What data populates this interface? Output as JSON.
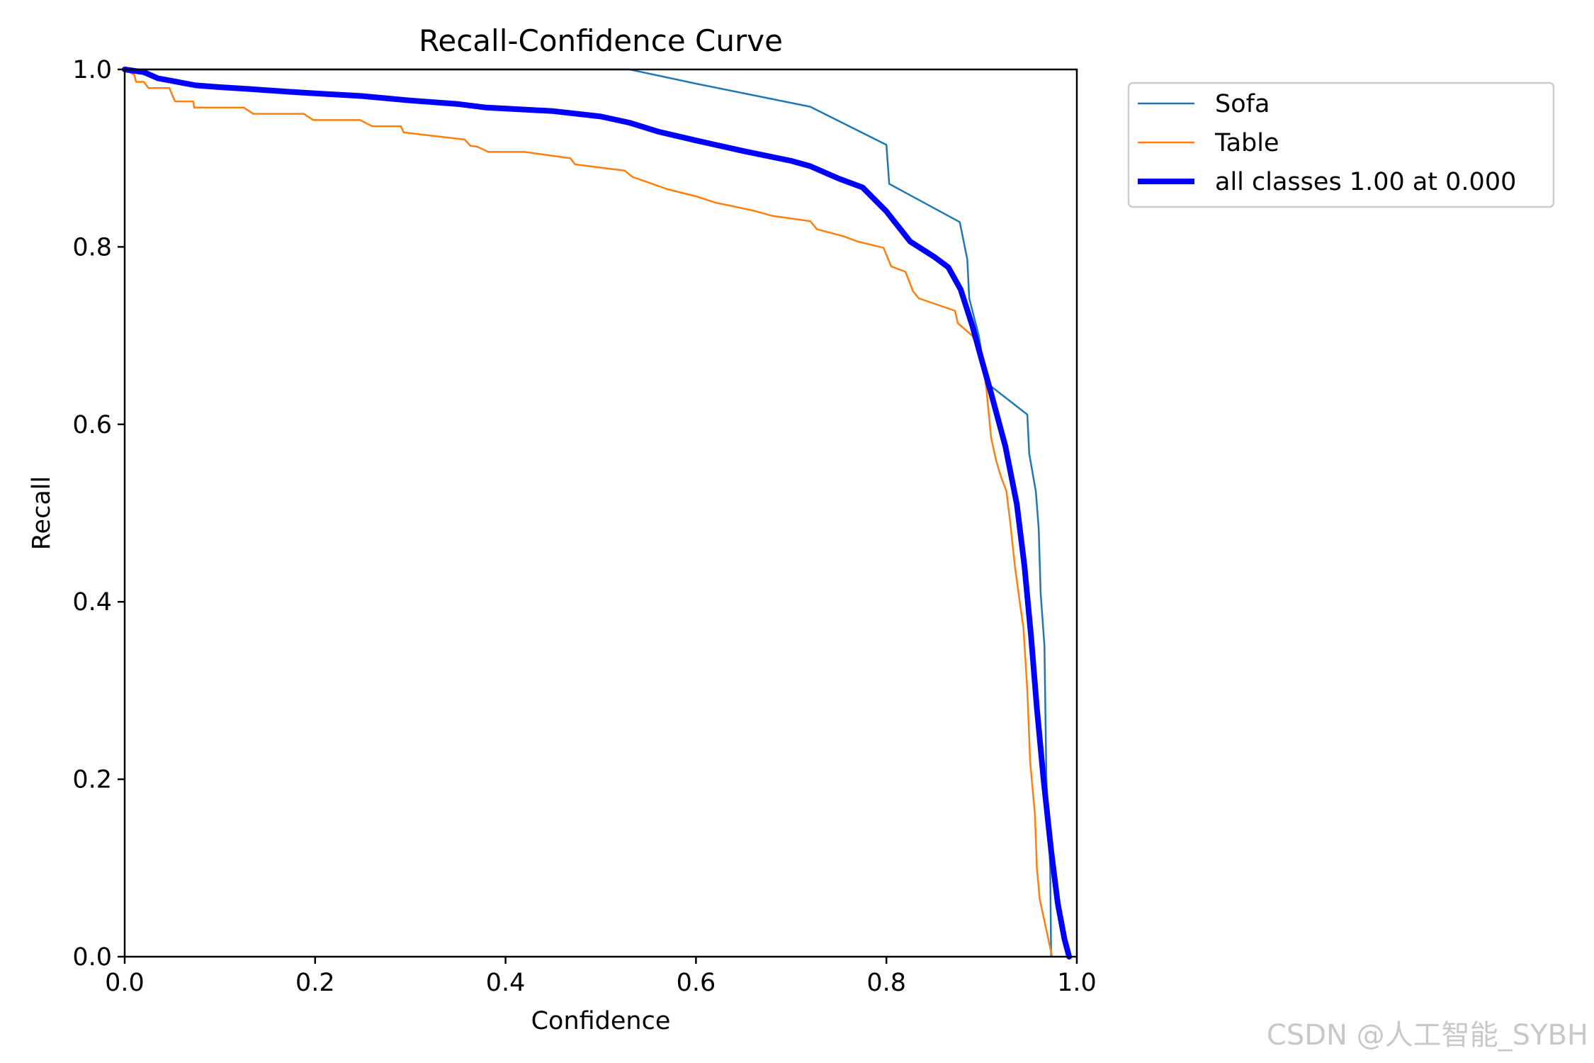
{
  "chart_data": {
    "type": "line",
    "title": "Recall-Confidence Curve",
    "xlabel": "Confidence",
    "ylabel": "Recall",
    "xlim": [
      0.0,
      1.0
    ],
    "ylim": [
      0.0,
      1.0
    ],
    "xticks": [
      "0.0",
      "0.2",
      "0.4",
      "0.6",
      "0.8",
      "1.0"
    ],
    "yticks": [
      "0.0",
      "0.2",
      "0.4",
      "0.6",
      "0.8",
      "1.0"
    ],
    "grid": false,
    "legend_position": "outside upper-right",
    "series": [
      {
        "name": "Sofa",
        "color": "#1f77b4",
        "width": "thin",
        "points": [
          [
            0,
            1.0
          ],
          [
            0.53,
            1.0
          ],
          [
            0.6,
            0.984
          ],
          [
            0.72,
            0.958
          ],
          [
            0.8,
            0.915
          ],
          [
            0.803,
            0.871
          ],
          [
            0.877,
            0.828
          ],
          [
            0.885,
            0.786
          ],
          [
            0.887,
            0.742
          ],
          [
            0.897,
            0.7
          ],
          [
            0.905,
            0.647
          ],
          [
            0.948,
            0.611
          ],
          [
            0.95,
            0.567
          ],
          [
            0.957,
            0.524
          ],
          [
            0.96,
            0.482
          ],
          [
            0.962,
            0.41
          ],
          [
            0.966,
            0.35
          ],
          [
            0.968,
            0.2
          ],
          [
            0.972,
            0.1
          ],
          [
            0.973,
            0.0
          ]
        ]
      },
      {
        "name": "Table",
        "color": "#ff7f0e",
        "width": "thin",
        "points": [
          [
            0,
            1.0
          ],
          [
            0.01,
            0.994
          ],
          [
            0.012,
            0.986
          ],
          [
            0.02,
            0.986
          ],
          [
            0.025,
            0.979
          ],
          [
            0.047,
            0.979
          ],
          [
            0.05,
            0.971
          ],
          [
            0.053,
            0.964
          ],
          [
            0.072,
            0.964
          ],
          [
            0.073,
            0.957
          ],
          [
            0.125,
            0.957
          ],
          [
            0.135,
            0.95
          ],
          [
            0.188,
            0.95
          ],
          [
            0.198,
            0.943
          ],
          [
            0.247,
            0.943
          ],
          [
            0.26,
            0.936
          ],
          [
            0.29,
            0.936
          ],
          [
            0.293,
            0.929
          ],
          [
            0.357,
            0.921
          ],
          [
            0.363,
            0.914
          ],
          [
            0.37,
            0.913
          ],
          [
            0.382,
            0.907
          ],
          [
            0.42,
            0.907
          ],
          [
            0.468,
            0.9
          ],
          [
            0.473,
            0.893
          ],
          [
            0.525,
            0.886
          ],
          [
            0.533,
            0.879
          ],
          [
            0.57,
            0.865
          ],
          [
            0.6,
            0.857
          ],
          [
            0.62,
            0.85
          ],
          [
            0.66,
            0.841
          ],
          [
            0.68,
            0.835
          ],
          [
            0.72,
            0.829
          ],
          [
            0.727,
            0.82
          ],
          [
            0.755,
            0.812
          ],
          [
            0.77,
            0.806
          ],
          [
            0.797,
            0.799
          ],
          [
            0.805,
            0.778
          ],
          [
            0.82,
            0.772
          ],
          [
            0.828,
            0.75
          ],
          [
            0.834,
            0.742
          ],
          [
            0.872,
            0.728
          ],
          [
            0.875,
            0.714
          ],
          [
            0.89,
            0.7
          ],
          [
            0.9,
            0.68
          ],
          [
            0.905,
            0.64
          ],
          [
            0.91,
            0.585
          ],
          [
            0.915,
            0.56
          ],
          [
            0.92,
            0.542
          ],
          [
            0.926,
            0.525
          ],
          [
            0.93,
            0.49
          ],
          [
            0.935,
            0.44
          ],
          [
            0.94,
            0.4
          ],
          [
            0.944,
            0.37
          ],
          [
            0.948,
            0.3
          ],
          [
            0.951,
            0.22
          ],
          [
            0.956,
            0.16
          ],
          [
            0.958,
            0.1
          ],
          [
            0.961,
            0.065
          ],
          [
            0.965,
            0.045
          ],
          [
            0.97,
            0.02
          ],
          [
            0.974,
            0.0
          ]
        ]
      },
      {
        "name": "all classes 1.00 at 0.000",
        "color": "#0000ff",
        "width": "thick",
        "points": [
          [
            0,
            1.0
          ],
          [
            0.02,
            0.997
          ],
          [
            0.035,
            0.99
          ],
          [
            0.075,
            0.982
          ],
          [
            0.1,
            0.98
          ],
          [
            0.13,
            0.978
          ],
          [
            0.17,
            0.975
          ],
          [
            0.2,
            0.973
          ],
          [
            0.25,
            0.97
          ],
          [
            0.3,
            0.965
          ],
          [
            0.35,
            0.961
          ],
          [
            0.38,
            0.957
          ],
          [
            0.45,
            0.953
          ],
          [
            0.5,
            0.947
          ],
          [
            0.53,
            0.94
          ],
          [
            0.56,
            0.93
          ],
          [
            0.6,
            0.92
          ],
          [
            0.65,
            0.908
          ],
          [
            0.7,
            0.897
          ],
          [
            0.72,
            0.891
          ],
          [
            0.75,
            0.877
          ],
          [
            0.775,
            0.867
          ],
          [
            0.8,
            0.84
          ],
          [
            0.825,
            0.806
          ],
          [
            0.85,
            0.789
          ],
          [
            0.865,
            0.777
          ],
          [
            0.878,
            0.752
          ],
          [
            0.89,
            0.712
          ],
          [
            0.9,
            0.673
          ],
          [
            0.91,
            0.635
          ],
          [
            0.925,
            0.575
          ],
          [
            0.937,
            0.51
          ],
          [
            0.945,
            0.44
          ],
          [
            0.952,
            0.36
          ],
          [
            0.958,
            0.28
          ],
          [
            0.965,
            0.2
          ],
          [
            0.973,
            0.12
          ],
          [
            0.98,
            0.06
          ],
          [
            0.987,
            0.02
          ],
          [
            0.992,
            0.0
          ]
        ]
      }
    ]
  },
  "watermark": "CSDN @人工智能_SYBH"
}
